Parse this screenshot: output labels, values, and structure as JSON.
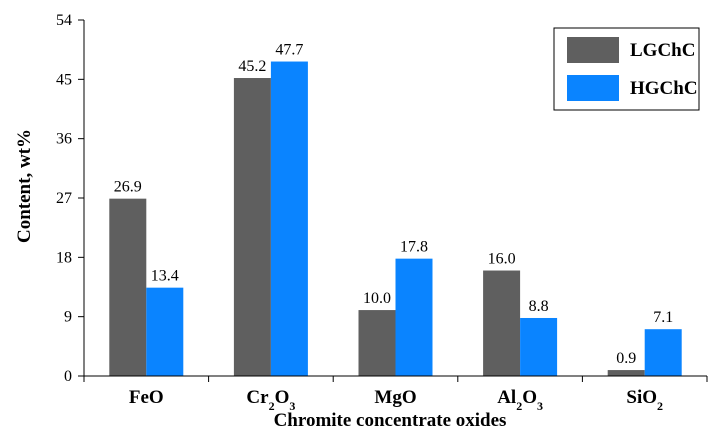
{
  "chart_data": {
    "type": "bar",
    "categories": [
      {
        "base": "FeO",
        "parts": [
          {
            "t": "FeO",
            "sub": false
          }
        ]
      },
      {
        "base": "Cr2O3",
        "parts": [
          {
            "t": "Cr",
            "sub": false
          },
          {
            "t": "2",
            "sub": true
          },
          {
            "t": "O",
            "sub": false
          },
          {
            "t": "3",
            "sub": true
          }
        ]
      },
      {
        "base": "MgO",
        "parts": [
          {
            "t": "MgO",
            "sub": false
          }
        ]
      },
      {
        "base": "Al2O3",
        "parts": [
          {
            "t": "Al",
            "sub": false
          },
          {
            "t": "2",
            "sub": true
          },
          {
            "t": "O",
            "sub": false
          },
          {
            "t": "3",
            "sub": true
          }
        ]
      },
      {
        "base": "SiO2",
        "parts": [
          {
            "t": "SiO",
            "sub": false
          },
          {
            "t": "2",
            "sub": true
          }
        ]
      }
    ],
    "series": [
      {
        "name": "LGChC",
        "color": "#5f5f5f",
        "values": [
          26.9,
          45.2,
          10.0,
          16.0,
          0.9
        ],
        "labels": [
          "26.9",
          "45.2",
          "10.0",
          "16.0",
          "0.9"
        ]
      },
      {
        "name": "HGChC",
        "color": "#0a84ff",
        "values": [
          13.4,
          47.7,
          17.8,
          8.8,
          7.1
        ],
        "labels": [
          "13.4",
          "47.7",
          "17.8",
          "8.8",
          "7.1"
        ]
      }
    ],
    "ylim": [
      0,
      54
    ],
    "yticks": [
      0,
      9,
      18,
      27,
      36,
      45,
      54
    ],
    "xlabel": "Chromite concentrate oxides",
    "ylabel": "Content, wt%",
    "legend": "top-right",
    "grid": false
  }
}
